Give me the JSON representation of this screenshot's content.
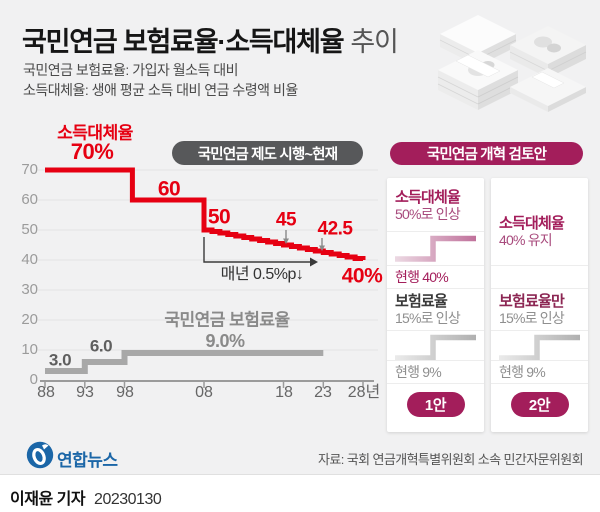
{
  "header": {
    "title_strong": "국민연금 보험료율·소득대체율",
    "title_light": "추이",
    "subtitle1": "국민연금 보험료율: 가입자 월소득 대비",
    "subtitle2": "소득대체율: 생애 평균 소득 대비 연금 수령액 비율"
  },
  "chart": {
    "period_badge": "국민연금 제도 시행~현재",
    "series1_name": "소득대체율",
    "series1_start": "70%",
    "label_60": "60",
    "label_50": "50",
    "label_45": "45",
    "label_42_5": "42.5",
    "label_40": "40%",
    "decline_note": "매년 0.5%p↓",
    "series2_name": "국민연금 보험료율",
    "series2_value": "9.0%",
    "label_3": "3.0",
    "label_6": "6.0",
    "y_ticks": [
      "70",
      "60",
      "50",
      "40",
      "30",
      "20",
      "10",
      "0"
    ],
    "x_ticks": [
      "88",
      "93",
      "98",
      "08",
      "18",
      "23",
      "28년"
    ]
  },
  "chart_data": {
    "type": "line",
    "title": "국민연금 보험료율·소득대체율 추이",
    "xlim": [
      1988,
      2028
    ],
    "ylim": [
      0,
      70
    ],
    "x_tick_years": [
      1988,
      1993,
      1998,
      2008,
      2018,
      2023,
      2028
    ],
    "y_tick_values": [
      0,
      10,
      20,
      30,
      40,
      50,
      60,
      70
    ],
    "grid": true,
    "series": [
      {
        "name": "소득대체율(%)",
        "color": "#e60012",
        "style": "step",
        "points": [
          [
            1988,
            70
          ],
          [
            1999,
            70
          ],
          [
            1999,
            60
          ],
          [
            2008,
            60
          ],
          [
            2008,
            50
          ],
          [
            2028,
            40
          ]
        ],
        "annotation": "2008년부터 매년 0.5%p 인하, 2028년 40%"
      },
      {
        "name": "국민연금 보험료율(%)",
        "color": "#a8a8a8",
        "style": "step",
        "points": [
          [
            1988,
            3
          ],
          [
            1993,
            3
          ],
          [
            1993,
            6
          ],
          [
            1998,
            6
          ],
          [
            1998,
            9
          ],
          [
            2023,
            9
          ]
        ]
      }
    ]
  },
  "reform": {
    "badge": "국민연금 개혁 검토안",
    "option1": {
      "replacement_title": "소득대체율",
      "replacement_change": "50%로 인상",
      "replacement_current": "현행 40%",
      "premium_title": "보험료율",
      "premium_change": "15%로 인상",
      "premium_current": "현행 9%",
      "badge": "1안"
    },
    "option2": {
      "replacement_title": "소득대체율",
      "replacement_change": "40% 유지",
      "premium_title": "보험료율만",
      "premium_change": "15%로 인상",
      "premium_current": "현행 9%",
      "badge": "2안"
    }
  },
  "footer": {
    "agency": "연합뉴스",
    "source": "자료: 국회 연금개혁특별위원회 소속 민간자문위원회",
    "reporter": "이재윤 기자",
    "date": "20230130"
  },
  "colors": {
    "red": "#e60012",
    "magenta": "#a31e5b",
    "pink_line": "#c0719b",
    "gray_line": "#a8a8a8",
    "dark_badge": "#57585a",
    "logo_blue": "#1b66a7",
    "background": "#f1f1f2"
  }
}
